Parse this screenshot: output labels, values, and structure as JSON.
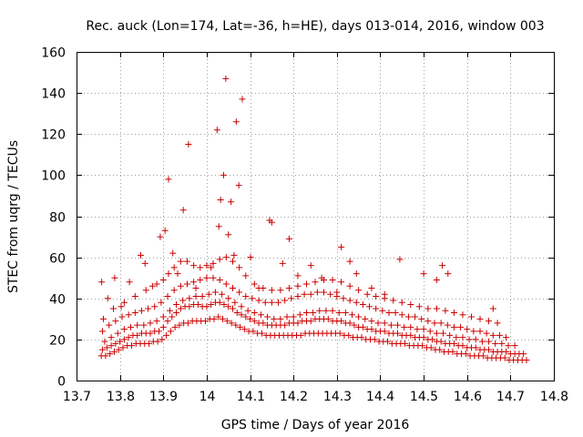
{
  "chart_data": {
    "type": "scatter",
    "title": "Rec. auck (Lon=174, Lat=-36, h=HE), days 013-014, 2016, window 003",
    "xlabel": "GPS time / Days of year 2016",
    "ylabel": "STEC from uqrg / TECUs",
    "xlim": [
      13.7,
      14.8
    ],
    "ylim": [
      0,
      160
    ],
    "xticks": [
      "13.7",
      "13.8",
      "13.9",
      "14",
      "14.1",
      "14.2",
      "14.3",
      "14.4",
      "14.5",
      "14.6",
      "14.7",
      "14.8"
    ],
    "yticks": [
      "0",
      "20",
      "40",
      "60",
      "80",
      "100",
      "120",
      "140",
      "160"
    ],
    "grid": true,
    "marker": "plus",
    "color": "#cc0000",
    "series": [
      {
        "x": [
          13.757,
          13.767,
          13.777,
          13.787,
          13.797,
          13.807,
          13.817,
          13.827,
          13.837,
          13.847,
          13.857,
          13.867,
          13.877,
          13.887,
          13.897,
          13.907,
          13.917,
          13.927,
          13.937,
          13.947,
          13.957,
          13.967,
          13.977,
          13.987,
          13.997,
          14.007,
          14.017,
          14.027,
          14.037,
          14.047,
          14.057,
          14.067,
          14.077,
          14.087,
          14.097,
          14.107,
          14.117,
          14.127,
          14.137,
          14.147,
          14.157,
          14.167,
          14.177,
          14.187,
          14.197,
          14.207,
          14.217,
          14.227,
          14.237,
          14.247,
          14.257,
          14.267,
          14.277,
          14.287,
          14.297,
          14.307,
          14.317,
          14.327,
          14.337,
          14.347,
          14.357,
          14.367,
          14.377,
          14.387,
          14.397,
          14.407,
          14.417,
          14.427,
          14.437,
          14.447,
          14.457,
          14.467,
          14.477,
          14.487,
          14.497,
          14.507,
          14.517,
          14.527,
          14.537,
          14.547,
          14.557,
          14.567,
          14.577,
          14.587,
          14.597,
          14.607,
          14.617,
          14.627,
          14.637,
          14.647,
          14.657,
          14.667,
          14.677,
          14.687,
          14.697,
          14.707,
          14.717,
          14.727,
          14.737
        ],
        "y": [
          12,
          12,
          13,
          14,
          15,
          16,
          17,
          17,
          18,
          18,
          18,
          18,
          19,
          19,
          20,
          22,
          24,
          26,
          27,
          28,
          28,
          29,
          29,
          29,
          29,
          30,
          30,
          31,
          30,
          29,
          28,
          27,
          26,
          25,
          24,
          24,
          23,
          23,
          22,
          22,
          22,
          22,
          22,
          22,
          22,
          22,
          22,
          23,
          23,
          23,
          23,
          23,
          23,
          23,
          23,
          23,
          22,
          22,
          21,
          21,
          21,
          20,
          20,
          20,
          19,
          19,
          19,
          18,
          18,
          18,
          18,
          17,
          17,
          17,
          17,
          16,
          16,
          15,
          15,
          14,
          14,
          14,
          13,
          13,
          13,
          12,
          12,
          12,
          12,
          11,
          11,
          11,
          11,
          11,
          10,
          10,
          10,
          10,
          10
        ]
      },
      {
        "x": [
          13.76,
          13.77,
          13.78,
          13.79,
          13.8,
          13.81,
          13.82,
          13.83,
          13.84,
          13.85,
          13.86,
          13.87,
          13.88,
          13.89,
          13.9,
          13.91,
          13.92,
          13.93,
          13.94,
          13.95,
          13.96,
          13.97,
          13.98,
          13.99,
          14.0,
          14.01,
          14.02,
          14.03,
          14.04,
          14.05,
          14.06,
          14.07,
          14.08,
          14.09,
          14.1,
          14.11,
          14.12,
          14.13,
          14.14,
          14.15,
          14.16,
          14.17,
          14.18,
          14.19,
          14.2,
          14.21,
          14.22,
          14.23,
          14.24,
          14.25,
          14.26,
          14.27,
          14.28,
          14.29,
          14.3,
          14.31,
          14.32,
          14.33,
          14.34,
          14.35,
          14.36,
          14.37,
          14.38,
          14.39,
          14.4,
          14.41,
          14.42,
          14.43,
          14.44,
          14.45,
          14.46,
          14.47,
          14.48,
          14.49,
          14.5,
          14.51,
          14.52,
          14.53,
          14.54,
          14.55,
          14.56,
          14.57,
          14.58,
          14.59,
          14.6,
          14.61,
          14.62,
          14.63,
          14.64,
          14.65,
          14.66,
          14.67,
          14.68,
          14.69,
          14.7,
          14.71,
          14.72,
          14.73
        ],
        "y": [
          15,
          16,
          17,
          18,
          19,
          20,
          21,
          22,
          22,
          23,
          23,
          23,
          24,
          24,
          26,
          29,
          31,
          33,
          35,
          36,
          36,
          37,
          37,
          36,
          36,
          37,
          38,
          38,
          37,
          36,
          35,
          33,
          32,
          31,
          30,
          29,
          28,
          28,
          27,
          27,
          27,
          27,
          27,
          28,
          28,
          28,
          29,
          29,
          29,
          30,
          30,
          30,
          30,
          29,
          29,
          29,
          28,
          28,
          27,
          26,
          26,
          25,
          25,
          24,
          24,
          24,
          23,
          23,
          23,
          22,
          22,
          22,
          21,
          21,
          21,
          20,
          20,
          19,
          19,
          18,
          18,
          18,
          17,
          17,
          16,
          16,
          16,
          15,
          15,
          15,
          14,
          14,
          14,
          14,
          13,
          13,
          13,
          13
        ]
      },
      {
        "x": [
          13.765,
          13.78,
          13.795,
          13.81,
          13.825,
          13.84,
          13.855,
          13.87,
          13.885,
          13.9,
          13.915,
          13.93,
          13.945,
          13.96,
          13.975,
          13.99,
          14.005,
          14.02,
          14.035,
          14.05,
          14.065,
          14.08,
          14.095,
          14.11,
          14.125,
          14.14,
          14.155,
          14.17,
          14.185,
          14.2,
          14.215,
          14.23,
          14.245,
          14.26,
          14.275,
          14.29,
          14.305,
          14.32,
          14.335,
          14.35,
          14.365,
          14.38,
          14.395,
          14.41,
          14.425,
          14.44,
          14.455,
          14.47,
          14.485,
          14.5,
          14.515,
          14.53,
          14.545,
          14.56,
          14.575,
          14.59,
          14.605,
          14.62,
          14.635,
          14.65,
          14.665,
          14.68,
          14.695,
          14.71
        ],
        "y": [
          19,
          21,
          23,
          25,
          26,
          27,
          27,
          28,
          29,
          31,
          34,
          37,
          39,
          40,
          41,
          41,
          42,
          43,
          42,
          40,
          38,
          36,
          34,
          33,
          32,
          31,
          30,
          30,
          31,
          31,
          32,
          33,
          33,
          34,
          34,
          34,
          33,
          33,
          32,
          31,
          30,
          29,
          28,
          28,
          27,
          27,
          26,
          26,
          25,
          25,
          24,
          23,
          23,
          22,
          21,
          21,
          20,
          20,
          19,
          19,
          18,
          18,
          17,
          17
        ]
      },
      {
        "x": [
          13.76,
          13.775,
          13.79,
          13.805,
          13.82,
          13.835,
          13.85,
          13.865,
          13.88,
          13.895,
          13.91,
          13.925,
          13.94,
          13.955,
          13.97,
          13.985,
          14.0,
          14.015,
          14.03,
          14.045,
          14.06,
          14.075,
          14.09,
          14.105,
          14.12,
          14.135,
          14.15,
          14.165,
          14.18,
          14.195,
          14.21,
          14.225,
          14.24,
          14.255,
          14.27,
          14.285,
          14.3,
          14.315,
          14.33,
          14.345,
          14.36,
          14.375,
          14.39,
          14.405,
          14.42,
          14.435,
          14.45,
          14.465,
          14.48,
          14.495,
          14.51,
          14.525,
          14.54,
          14.555,
          14.57,
          14.585,
          14.6,
          14.615,
          14.63,
          14.645,
          14.66,
          14.675,
          14.69
        ],
        "y": [
          24,
          27,
          29,
          31,
          32,
          33,
          34,
          35,
          36,
          38,
          41,
          44,
          46,
          47,
          48,
          49,
          50,
          50,
          49,
          47,
          45,
          43,
          41,
          40,
          39,
          38,
          38,
          38,
          39,
          40,
          41,
          42,
          42,
          43,
          43,
          42,
          41,
          40,
          39,
          38,
          37,
          36,
          35,
          34,
          33,
          33,
          32,
          31,
          31,
          30,
          29,
          28,
          28,
          27,
          26,
          26,
          25,
          24,
          24,
          23,
          22,
          22,
          21
        ]
      },
      {
        "x": [
          13.762,
          13.785,
          13.81,
          13.835,
          13.86,
          13.885,
          13.9,
          13.912,
          13.925,
          13.94,
          13.955,
          13.97,
          13.985,
          14.0,
          14.015,
          14.03,
          14.045,
          14.06,
          14.075,
          14.09,
          14.11,
          14.13,
          14.15,
          14.17,
          14.19,
          14.21,
          14.23,
          14.25,
          14.27,
          14.29,
          14.31,
          14.33,
          14.35,
          14.37,
          14.39,
          14.41,
          14.43,
          14.45,
          14.47,
          14.49,
          14.51,
          14.53,
          14.55,
          14.57,
          14.59,
          14.61,
          14.63,
          14.65,
          14.67
        ],
        "y": [
          30,
          35,
          38,
          41,
          44,
          47,
          49,
          52,
          55,
          58,
          58,
          56,
          55,
          56,
          57,
          59,
          60,
          58,
          55,
          51,
          47,
          45,
          44,
          44,
          45,
          46,
          47,
          48,
          49,
          49,
          48,
          46,
          44,
          42,
          41,
          40,
          39,
          38,
          37,
          36,
          35,
          35,
          34,
          33,
          32,
          31,
          30,
          29,
          28
        ]
      },
      {
        "x": [
          13.758,
          13.772,
          13.788,
          13.803,
          13.822,
          13.848,
          13.858,
          13.875,
          13.893,
          13.904,
          13.912,
          13.922,
          13.933,
          13.946,
          13.958,
          13.975,
          14.01,
          14.024,
          14.028,
          14.032,
          14.039,
          14.044,
          14.05,
          14.056,
          14.063,
          14.068,
          14.074,
          14.082,
          14.101,
          14.12,
          14.145,
          14.15,
          14.175,
          14.19,
          14.21,
          14.24,
          14.265,
          14.3,
          14.31,
          14.33,
          14.345,
          14.38,
          14.41,
          14.445,
          14.5,
          14.53,
          14.543,
          14.556,
          14.66
        ],
        "y": [
          48,
          40,
          50,
          36,
          48,
          61,
          57,
          46,
          70,
          73,
          98,
          62,
          52,
          83,
          115,
          45,
          55,
          122,
          75,
          88,
          100,
          147,
          71,
          87,
          61,
          126,
          95,
          137,
          60,
          45,
          78,
          77,
          57,
          69,
          51,
          56,
          50,
          43,
          65,
          58,
          52,
          45,
          42,
          59,
          52,
          49,
          56,
          52,
          35
        ]
      }
    ]
  }
}
